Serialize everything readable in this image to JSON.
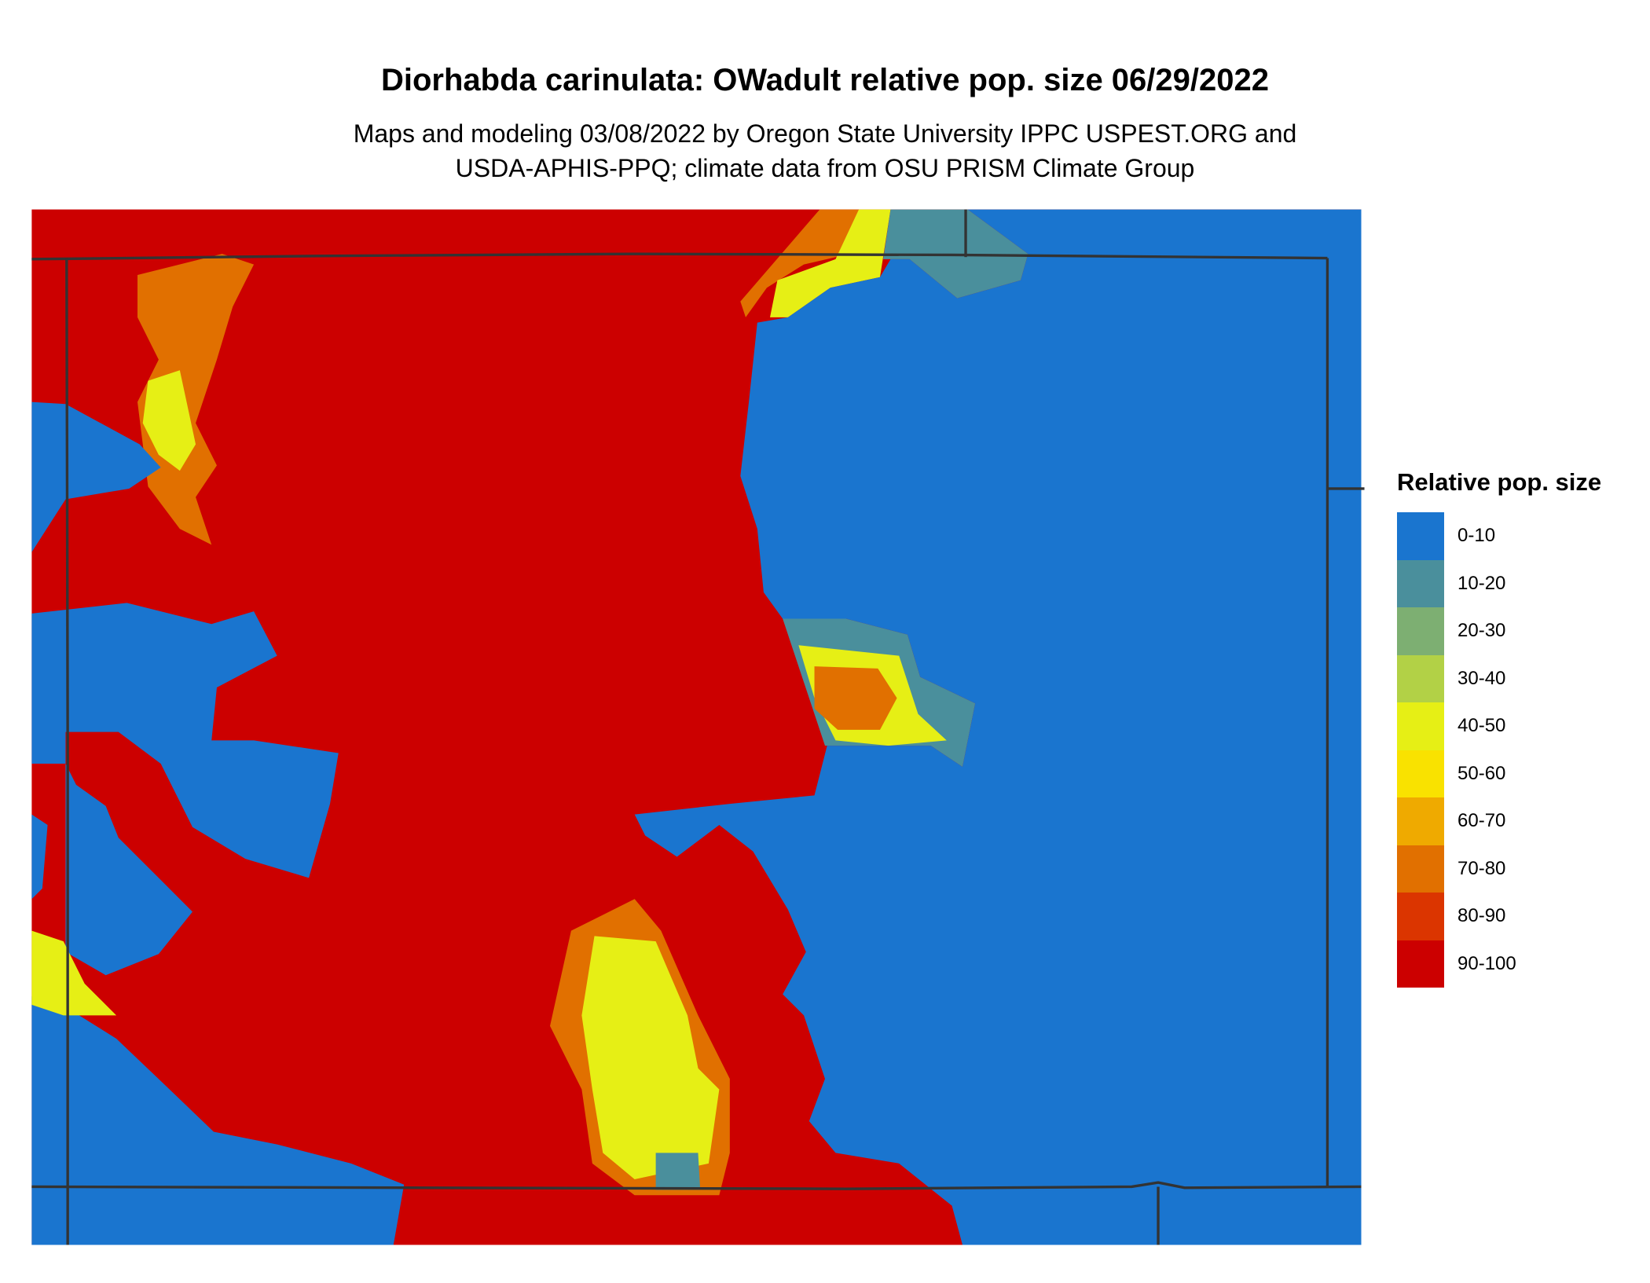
{
  "title": "Diorhabda carinulata: OWadult relative pop. size 06/29/2022",
  "subtitle_lines": [
    "Maps and modeling 03/08/2022 by Oregon State University IPPC USPEST.ORG and",
    "USDA-APHIS-PPQ; climate data from OSU PRISM Climate Group"
  ],
  "legend": {
    "title": "Relative pop. size",
    "items": [
      {
        "label": "0-10",
        "color": "#1a75cf"
      },
      {
        "label": "10-20",
        "color": "#4a8f9c"
      },
      {
        "label": "20-30",
        "color": "#7daf72"
      },
      {
        "label": "30-40",
        "color": "#b2d146"
      },
      {
        "label": "40-50",
        "color": "#e6ef15"
      },
      {
        "label": "50-60",
        "color": "#f9e200"
      },
      {
        "label": "60-70",
        "color": "#efaa00"
      },
      {
        "label": "70-80",
        "color": "#e17000"
      },
      {
        "label": "80-90",
        "color": "#db3500"
      },
      {
        "label": "90-100",
        "color": "#cc0000"
      }
    ]
  },
  "border_color": "#333333"
}
